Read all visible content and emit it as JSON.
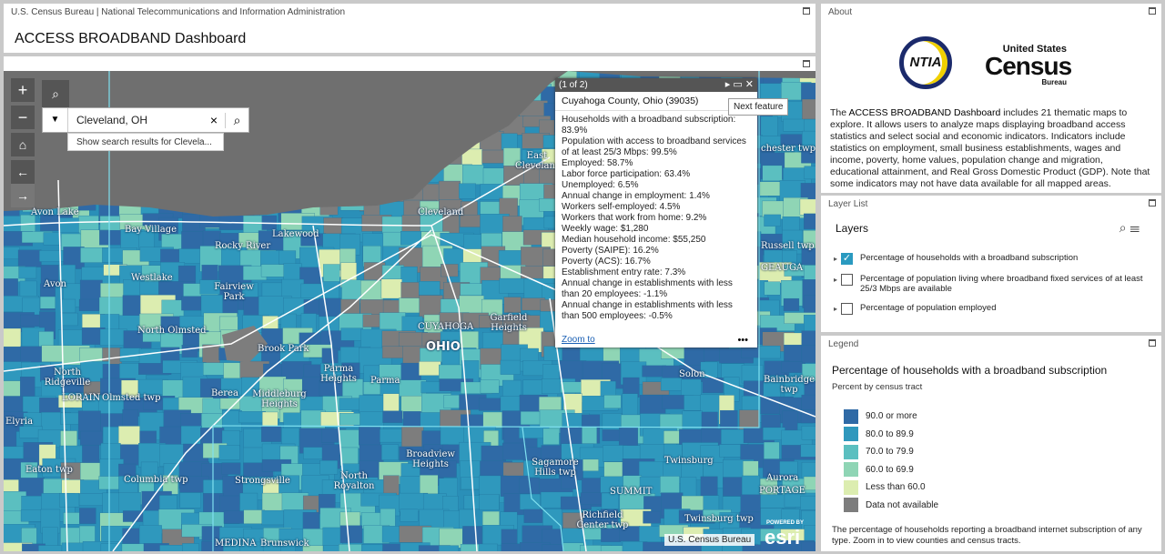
{
  "header": {
    "agency": "U.S. Census Bureau | National Telecommunications and Information Administration",
    "title": "ACCESS BROADBAND Dashboard"
  },
  "map": {
    "search": {
      "value": "Cleveland, OH",
      "suggestion": "Show search results for Clevela..."
    },
    "popup": {
      "counter": "(1 of 2)",
      "title": "Cuyahoga County, Ohio (39035)",
      "fields": [
        "Households with a broadband subscription: 83.9%",
        "Population with access to broadband services of at least 25/3 Mbps: 99.5%",
        "Employed: 58.7%",
        "Labor force participation: 63.4%",
        "Unemployed: 6.5%",
        "Annual change in employment: 1.4%",
        "Workers self-employed: 4.5%",
        "Workers that work from home: 9.2%",
        "Weekly wage: $1,280",
        "Median household income: $55,250",
        "Poverty (SAIPE): 16.2%",
        "Poverty (ACS): 16.7%",
        "Establishment entry rate: 7.3%",
        "Annual change in establishments with less than 20 employees: -1.1%",
        "Annual change in establishments with less than 500 employees: -0.5%"
      ],
      "zoom": "Zoom to",
      "tooltip": "Next feature"
    },
    "labels": [
      "Avon Lake",
      "Bay Village",
      "Rocky River",
      "Lakewood",
      "Westlake",
      "Avon",
      "Fairview Park",
      "North Olmsted",
      "Brook Park",
      "Parma Heights",
      "Parma",
      "North Ridgeville",
      "LORAIN",
      "Olmsted twp",
      "Berea",
      "Middleburg Heights",
      "Elyria",
      "Eaton twp",
      "Columbia twp",
      "Strongsville",
      "North Royalton",
      "Broadview Heights",
      "Sagamore Hills twp",
      "SUMMIT",
      "Richfield Center twp",
      "Twinsburg twp",
      "Twinsburg",
      "Aurora",
      "PORTAGE",
      "Solon",
      "Bainbridge twp",
      "GEAUGA",
      "Russell twp",
      "chester twp",
      "CUYAHOGA",
      "OHIO",
      "Garfield Heights",
      "Cleveland",
      "East Cleveland",
      "MEDINA",
      "Brunswick"
    ],
    "attribution": "U.S. Census Bureau",
    "powered": "POWERED BY",
    "esri": "esri"
  },
  "about": {
    "panel": "About",
    "logo_ntia": "NTIA",
    "logo_us": "United States",
    "logo_census": "Census",
    "logo_bureau": "Bureau",
    "text_start": "The ",
    "text_bold": "ACCESS BROADBAND Dashboard",
    "text_rest": " includes 21 thematic maps to explore. It allows users to analyze maps displaying broadband access statistics and select social and economic indicators. Indicators include statistics on employment, small business establishments, wages and income, poverty, home values, population change and migration, educational attainment, and Real Gross Domestic Product (GDP). Note that some indicators may not have data available for all mapped areas."
  },
  "layer_list": {
    "panel": "Layer List",
    "heading": "Layers",
    "items": [
      {
        "label": "Percentage of households with a broadband subscription",
        "checked": true
      },
      {
        "label": "Percentage of population living where broadband fixed services of at least 25/3 Mbps are available",
        "checked": false
      },
      {
        "label": "Percentage of population employed",
        "checked": false
      }
    ]
  },
  "legend": {
    "panel": "Legend",
    "title": "Percentage of households with a broadband subscription",
    "subtitle": "Percent by census tract",
    "items": [
      {
        "label": "90.0 or more",
        "color": "#2f6aa6"
      },
      {
        "label": "80.0 to 89.9",
        "color": "#2f98bd"
      },
      {
        "label": "70.0 to 79.9",
        "color": "#5bbfc0"
      },
      {
        "label": "60.0 to 69.9",
        "color": "#8fd5b5"
      },
      {
        "label": "Less than 60.0",
        "color": "#dcedb0"
      },
      {
        "label": "Data not available",
        "color": "#7d7d7d"
      }
    ],
    "note": "The percentage of households reporting a broadband internet subscription of any type. Zoom in to view counties and census tracts."
  }
}
